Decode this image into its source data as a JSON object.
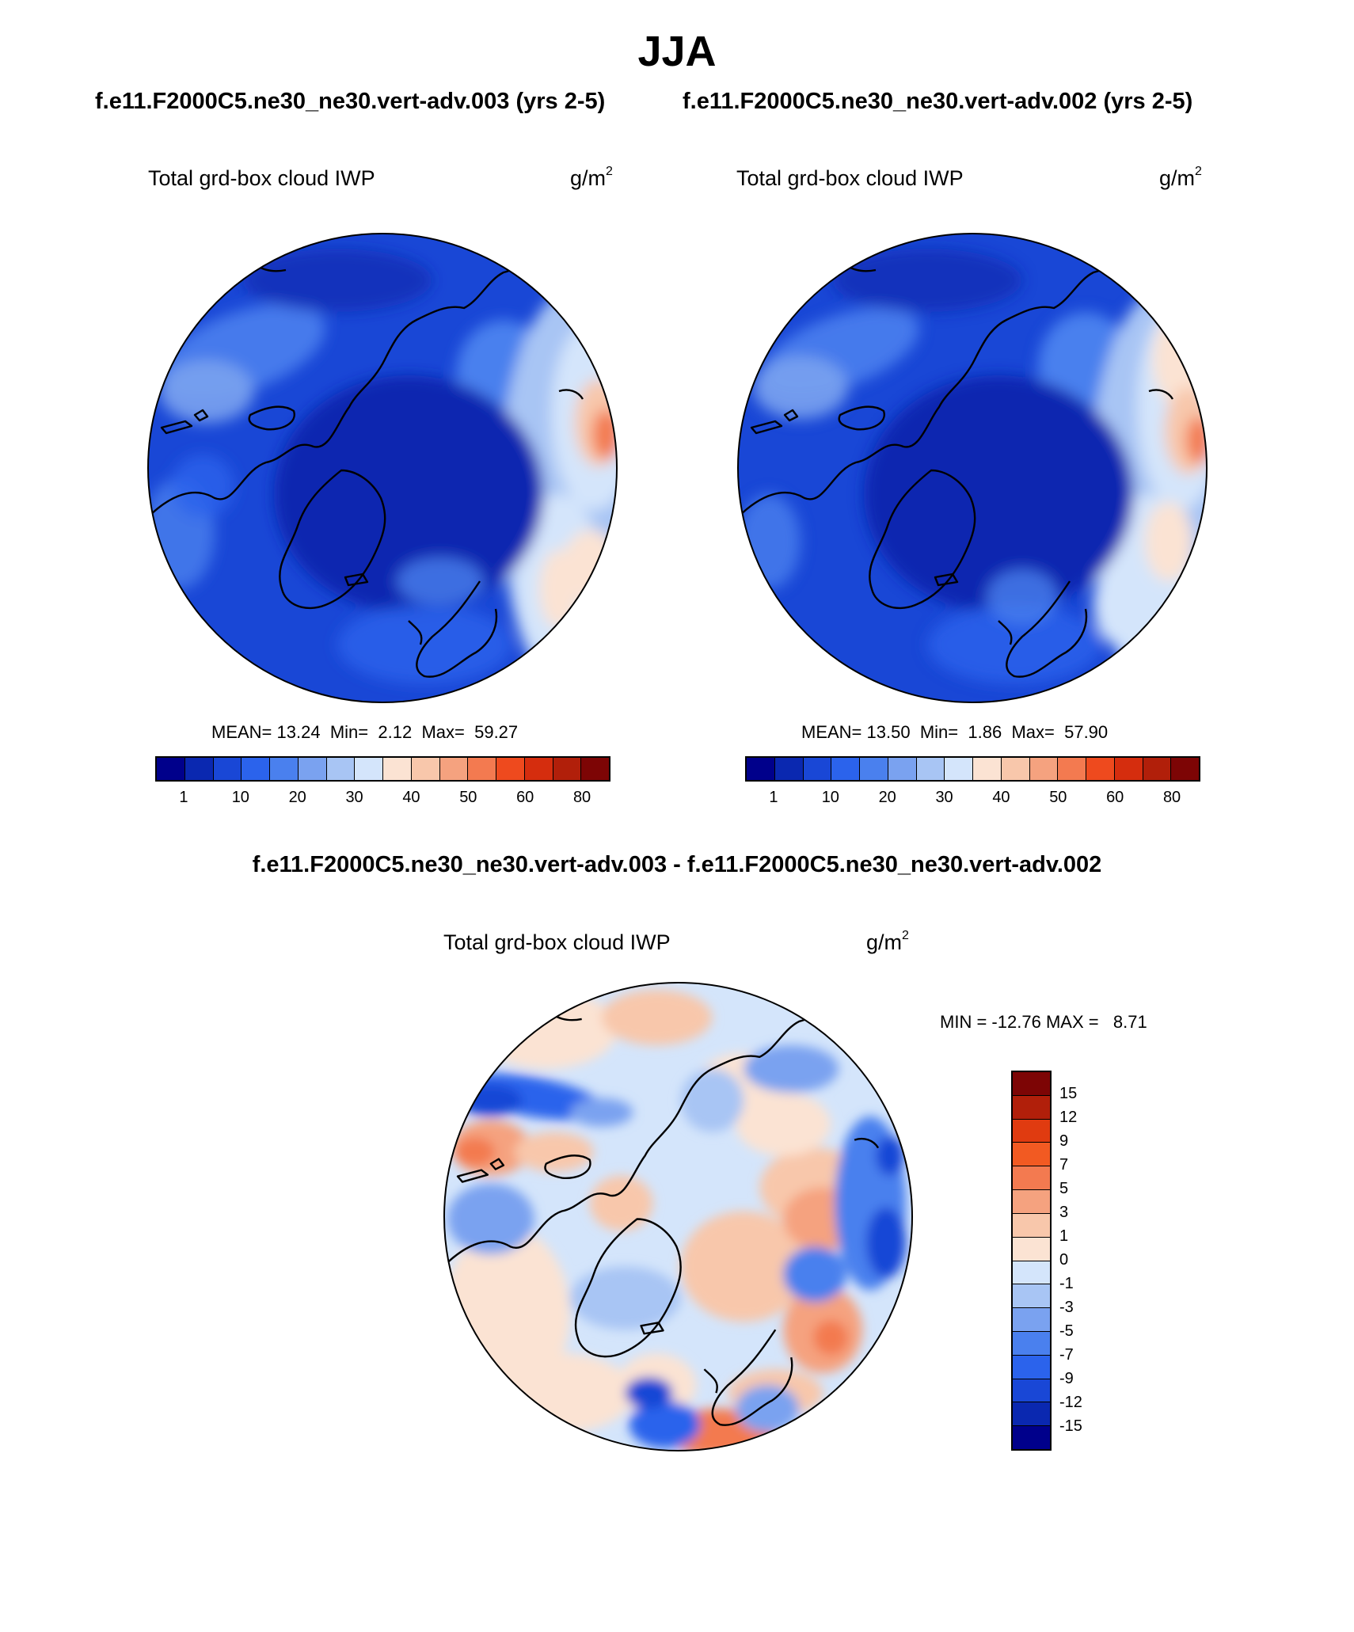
{
  "figure": {
    "title": "JJA",
    "subtitle_left": "f.e11.F2000C5.ne30_ne30.vert-adv.003 (yrs 2-5)",
    "subtitle_right": "f.e11.F2000C5.ne30_ne30.vert-adv.002 (yrs 2-5)",
    "diff_title": "f.e11.F2000C5.ne30_ne30.vert-adv.003 - f.e11.F2000C5.ne30_ne30.vert-adv.002"
  },
  "panels": [
    {
      "label": "Total grd-box cloud IWP",
      "units": "g/m",
      "units_sup": "2",
      "stats": {
        "mean_label": "MEAN=",
        "mean": "13.24",
        "min_label": "Min=",
        "min": "2.12",
        "max_label": "Max=",
        "max": "59.27"
      }
    },
    {
      "label": "Total grd-box cloud IWP",
      "units": "g/m",
      "units_sup": "2",
      "stats": {
        "mean_label": "MEAN=",
        "mean": "13.50",
        "min_label": "Min=",
        "min": "1.86",
        "max_label": "Max=",
        "max": "57.90"
      }
    },
    {
      "label": "Total grd-box cloud IWP",
      "units": "g/m",
      "units_sup": "2",
      "stats": {
        "min_label": "MIN =",
        "min": "-12.76",
        "max_label": "MAX =",
        "max": "8.71"
      }
    }
  ],
  "colorbars": {
    "absolute": {
      "colors": [
        "#00008b",
        "#0a28b0",
        "#1947d6",
        "#2b63ec",
        "#4a80ee",
        "#7aa2f0",
        "#a8c5f4",
        "#d4e5fb",
        "#fbe3d3",
        "#f8c7ab",
        "#f5a27f",
        "#f37a50",
        "#ee4a1e",
        "#d52d0e",
        "#b11f0a",
        "#7d0505"
      ],
      "labels": [
        "1",
        "10",
        "20",
        "30",
        "40",
        "50",
        "60",
        "80"
      ]
    },
    "difference": {
      "colors": [
        "#7d0505",
        "#b11f0a",
        "#e03b10",
        "#f25a22",
        "#f37a50",
        "#f5a27f",
        "#f8c7ab",
        "#fbe3d3",
        "#d4e5fb",
        "#a8c5f4",
        "#7aa2f0",
        "#4a80ee",
        "#2b63ec",
        "#1947d6",
        "#0a28b0",
        "#00008b"
      ],
      "labels": [
        "15",
        "12",
        "9",
        "7",
        "5",
        "3",
        "1",
        "0",
        "-1",
        "-3",
        "-5",
        "-7",
        "-9",
        "-12",
        "-15"
      ]
    }
  }
}
